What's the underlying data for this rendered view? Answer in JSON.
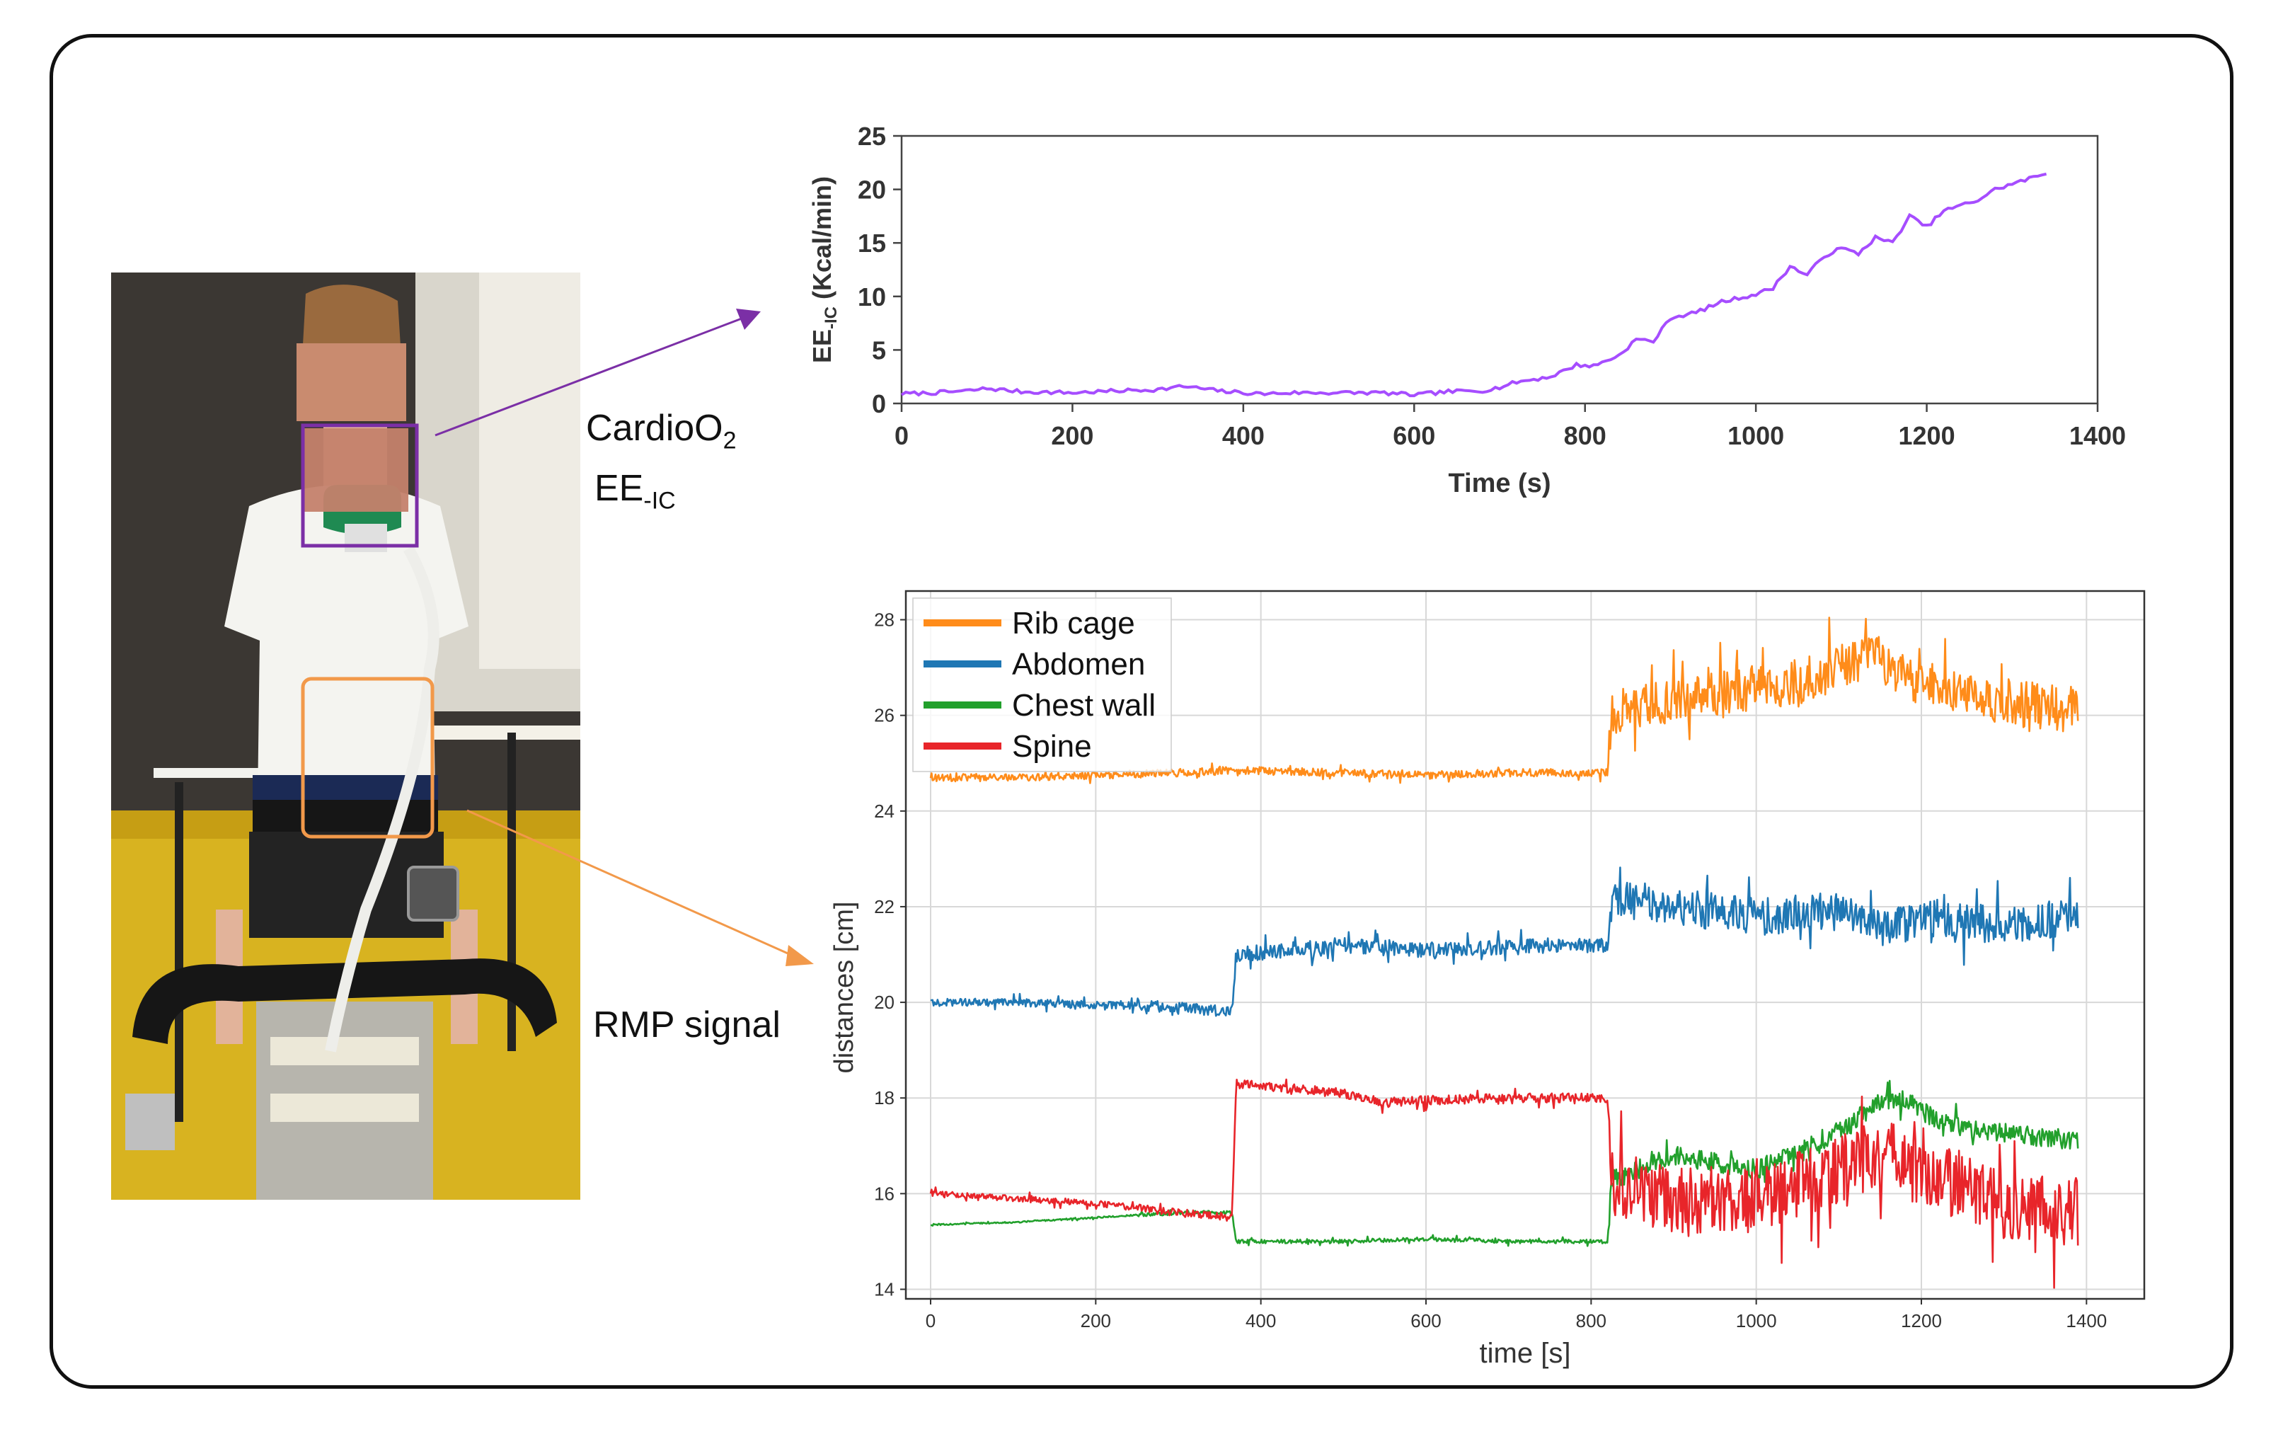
{
  "photo_labels": {
    "device_name": "CardioO",
    "device_subscript": "2",
    "ee_main": "EE",
    "ee_subscript": "-IC",
    "rmp_label": "RMP  signal"
  },
  "colors": {
    "purple": "#a64dff",
    "annotation_purple": "#7b2fa6",
    "annotation_orange": "#f2994a",
    "rib_cage": "#ff8c1a",
    "abdomen": "#1f77b4",
    "chest_wall": "#22a02c",
    "spine": "#e8252a"
  },
  "chart_data": [
    {
      "type": "line",
      "title": "",
      "xlabel": "Time (s)",
      "ylabel_main": "EE",
      "ylabel_sub": "-IC",
      "ylabel_unit": "(Kcal/min)",
      "xlim": [
        0,
        1400
      ],
      "ylim": [
        0,
        25
      ],
      "xticks": [
        "0",
        "200",
        "400",
        "600",
        "800",
        "1000",
        "1200",
        "1400"
      ],
      "yticks": [
        "0",
        "5",
        "10",
        "15",
        "20",
        "25"
      ],
      "series": [
        {
          "name": "EE-IC",
          "color": "#a64dff",
          "x": [
            0,
            40,
            80,
            100,
            140,
            200,
            260,
            300,
            330,
            380,
            420,
            460,
            520,
            560,
            600,
            640,
            680,
            700,
            720,
            760,
            790,
            810,
            840,
            860,
            880,
            900,
            930,
            960,
            1000,
            1020,
            1040,
            1060,
            1080,
            1100,
            1120,
            1140,
            1160,
            1180,
            1200,
            1220,
            1240,
            1260,
            1280,
            1300,
            1320,
            1340
          ],
          "y": [
            0.9,
            1.0,
            1.2,
            1.4,
            1.1,
            1.0,
            1.2,
            1.3,
            1.6,
            1.1,
            0.9,
            1.0,
            1.0,
            1.0,
            0.8,
            1.1,
            1.2,
            1.5,
            2.0,
            2.5,
            3.6,
            3.5,
            4.5,
            6.0,
            5.8,
            8.0,
            8.5,
            9.5,
            10.2,
            10.8,
            12.8,
            12.0,
            13.8,
            14.5,
            14.0,
            15.5,
            15.0,
            17.5,
            16.5,
            18.0,
            18.5,
            19.0,
            20.0,
            20.5,
            21.0,
            21.5
          ]
        }
      ]
    },
    {
      "type": "line",
      "title": "",
      "xlabel": "time [s]",
      "ylabel": "distances [cm]",
      "xlim": [
        -30,
        1470
      ],
      "ylim": [
        13.8,
        28.6
      ],
      "grid": true,
      "legend_position": "top-left",
      "xticks": [
        "0",
        "200",
        "400",
        "600",
        "800",
        "1000",
        "1200",
        "1400"
      ],
      "yticks": [
        "14",
        "16",
        "18",
        "20",
        "22",
        "24",
        "26",
        "28"
      ],
      "series": [
        {
          "name": "Rib cage",
          "color": "#ff8c1a",
          "noise": [
            0.1,
            0.1,
            0.1,
            0.6
          ],
          "x": [
            0,
            100,
            200,
            300,
            365,
            370,
            500,
            600,
            700,
            820,
            825,
            900,
            1000,
            1050,
            1100,
            1140,
            1180,
            1250,
            1300,
            1390
          ],
          "y": [
            24.7,
            24.7,
            24.75,
            24.8,
            24.85,
            24.85,
            24.8,
            24.75,
            24.8,
            24.8,
            26.1,
            26.3,
            26.6,
            26.7,
            27.0,
            27.3,
            26.8,
            26.5,
            26.3,
            26.1
          ]
        },
        {
          "name": "Abdomen",
          "color": "#1f77b4",
          "noise": [
            0.1,
            0.15,
            0.2,
            0.5
          ],
          "x": [
            0,
            100,
            200,
            300,
            365,
            370,
            500,
            600,
            700,
            820,
            825,
            900,
            1000,
            1100,
            1140,
            1160,
            1200,
            1250,
            1300,
            1390
          ],
          "y": [
            20.0,
            20.0,
            19.95,
            19.9,
            19.8,
            21.0,
            21.2,
            21.1,
            21.15,
            21.2,
            22.2,
            22.0,
            21.8,
            21.9,
            21.7,
            21.5,
            21.8,
            21.7,
            21.6,
            21.8
          ]
        },
        {
          "name": "Chest wall",
          "color": "#22a02c",
          "noise": [
            0.02,
            0.05,
            0.05,
            0.25
          ],
          "x": [
            0,
            100,
            200,
            300,
            365,
            370,
            500,
            600,
            700,
            820,
            825,
            900,
            1000,
            1050,
            1100,
            1150,
            1180,
            1220,
            1280,
            1390
          ],
          "y": [
            15.35,
            15.4,
            15.5,
            15.6,
            15.6,
            15.0,
            15.0,
            15.05,
            15.0,
            15.0,
            16.3,
            16.8,
            16.5,
            16.9,
            17.3,
            17.9,
            18.0,
            17.5,
            17.3,
            17.1
          ]
        },
        {
          "name": "Spine",
          "color": "#e8252a",
          "noise": [
            0.08,
            0.1,
            0.12,
            0.9
          ],
          "x": [
            0,
            100,
            200,
            300,
            365,
            370,
            500,
            550,
            600,
            700,
            820,
            825,
            900,
            1000,
            1100,
            1160,
            1180,
            1250,
            1300,
            1390
          ],
          "y": [
            16.0,
            15.9,
            15.8,
            15.6,
            15.5,
            18.3,
            18.1,
            17.9,
            17.95,
            18.0,
            18.0,
            16.2,
            15.8,
            15.9,
            16.5,
            17.0,
            16.5,
            16.2,
            15.8,
            15.6
          ]
        }
      ]
    }
  ]
}
